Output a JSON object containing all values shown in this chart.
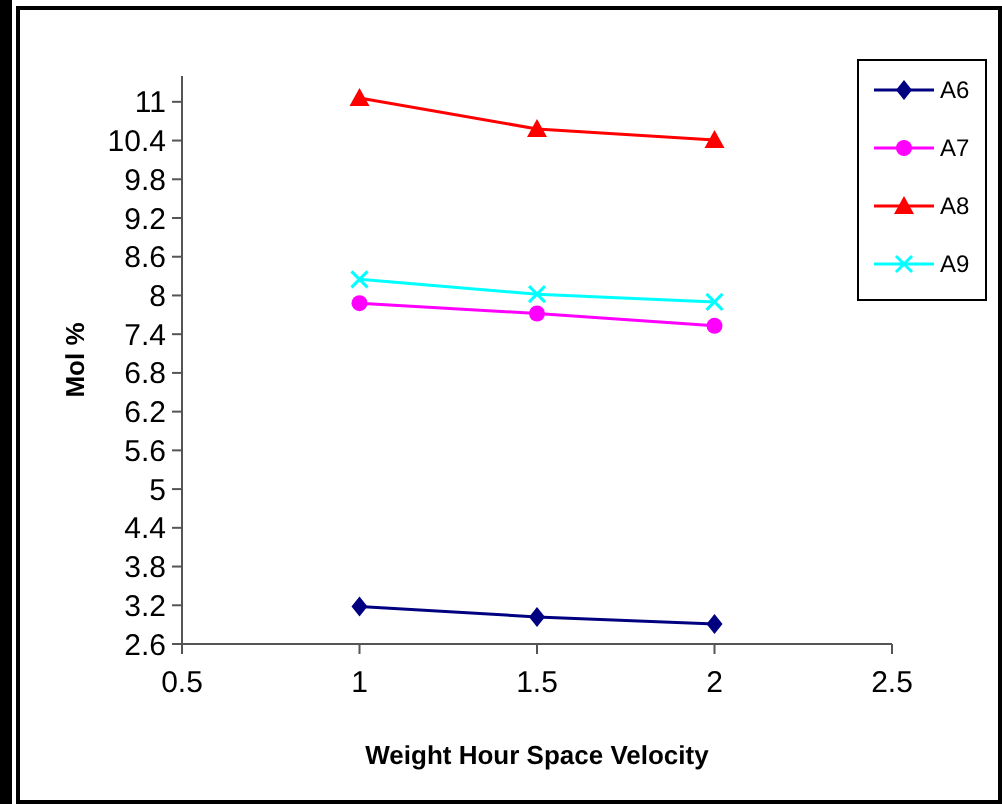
{
  "chart_data": {
    "type": "line",
    "xlabel": "Weight Hour Space Velocity",
    "ylabel": "Mol %",
    "x": [
      1,
      1.5,
      2
    ],
    "xlim": [
      0.5,
      2.5
    ],
    "xticks": [
      0.5,
      1,
      1.5,
      2,
      2.5
    ],
    "ylim": [
      2.6,
      11.4
    ],
    "yticks": [
      2.6,
      3.2,
      3.8,
      4.4,
      5,
      5.6,
      6.2,
      6.8,
      7.4,
      8,
      8.6,
      9.2,
      9.8,
      10.4,
      11
    ],
    "legend": "top right",
    "grid": false,
    "series": [
      {
        "name": "A6",
        "color": "#000080",
        "marker": "diamond",
        "values": [
          3.18,
          3.02,
          2.91
        ]
      },
      {
        "name": "A7",
        "color": "#ff00ff",
        "marker": "circle",
        "values": [
          7.88,
          7.72,
          7.53
        ]
      },
      {
        "name": "A8",
        "color": "#ff0000",
        "marker": "triangle",
        "values": [
          11.06,
          10.58,
          10.41
        ]
      },
      {
        "name": "A9",
        "color": "#00ffff",
        "marker": "cross",
        "values": [
          8.25,
          8.02,
          7.9
        ]
      }
    ]
  }
}
